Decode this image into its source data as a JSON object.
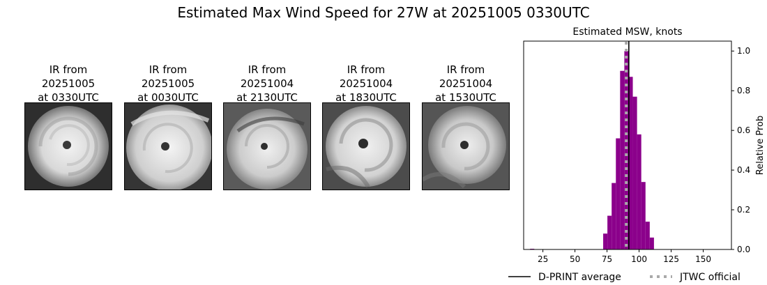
{
  "figure": {
    "title": "Estimated Max Wind Speed for 27W at 20251005 0330UTC"
  },
  "ir_panels": [
    {
      "line1": "IR from",
      "line2": "20251005",
      "line3": "at 0330UTC"
    },
    {
      "line1": "IR from",
      "line2": "20251005",
      "line3": "at 0030UTC"
    },
    {
      "line1": "IR from",
      "line2": "20251004",
      "line3": "at 2130UTC"
    },
    {
      "line1": "IR from",
      "line2": "20251004",
      "line3": "at 1830UTC"
    },
    {
      "line1": "IR from",
      "line2": "20251004",
      "line3": "at 1530UTC"
    }
  ],
  "chart_data": {
    "type": "bar",
    "title": "Estimated MSW, knots",
    "xlabel": "",
    "ylabel": "Relative Prob",
    "xlim": [
      10,
      172
    ],
    "ylim": [
      0,
      1.05
    ],
    "xticks": [
      25,
      50,
      75,
      100,
      125,
      150
    ],
    "yticks": [
      0.0,
      0.2,
      0.4,
      0.6,
      0.8,
      1.0
    ],
    "ytick_labels": [
      "0.0",
      "0.2",
      "0.4",
      "0.6",
      "0.8",
      "1.0"
    ],
    "y_axis_side": "right",
    "bar_color": "#8b008b",
    "bin_width": 3.3,
    "bins": [
      {
        "x": 15.0,
        "value": 0.002
      },
      {
        "x": 72.0,
        "value": 0.08
      },
      {
        "x": 75.3,
        "value": 0.17
      },
      {
        "x": 78.6,
        "value": 0.335
      },
      {
        "x": 81.9,
        "value": 0.56
      },
      {
        "x": 85.2,
        "value": 0.9
      },
      {
        "x": 88.5,
        "value": 1.0
      },
      {
        "x": 91.8,
        "value": 0.87
      },
      {
        "x": 95.1,
        "value": 0.77
      },
      {
        "x": 98.4,
        "value": 0.58
      },
      {
        "x": 101.7,
        "value": 0.34
      },
      {
        "x": 105.0,
        "value": 0.14
      },
      {
        "x": 108.3,
        "value": 0.06
      }
    ],
    "dprint_average": 92,
    "jtwc_official": 90,
    "legend": [
      {
        "label": "D-PRINT average",
        "color": "#000000",
        "style": "solid"
      },
      {
        "label": "JTWC official",
        "color": "#a9a9a9",
        "style": "dotted"
      }
    ],
    "legend_placement": "below",
    "grid": false
  }
}
